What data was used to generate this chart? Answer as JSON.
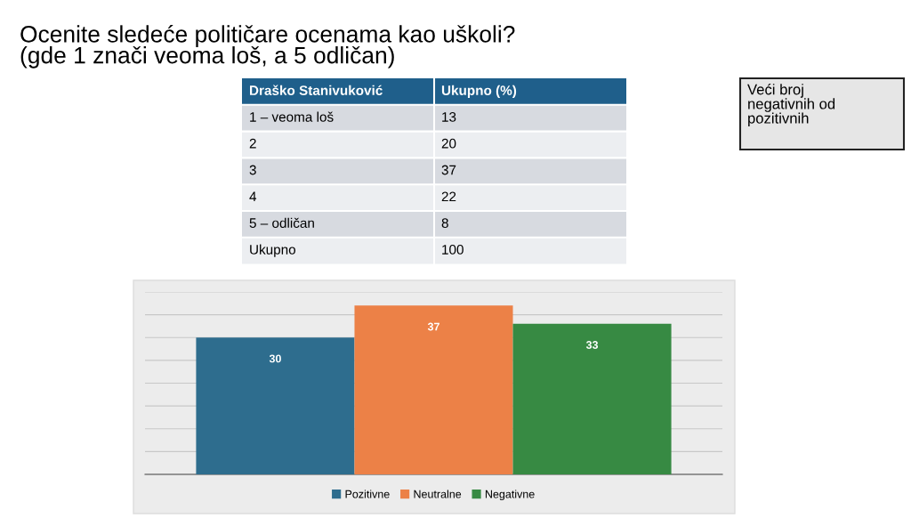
{
  "chart_data": [
    {
      "type": "other",
      "title": "Ocenite sledeće političare ocenama kao uškoli?\n(gde 1 znači veoma loš, a 5 odličan)",
      "annotations": [
        "Draško Stanivuković",
        "Ukupno (%)",
        "Veći broj\nnegativnih od\npozitivnih"
      ],
      "categories": [
        "1 – veoma loš",
        "2",
        "3",
        "4",
        "5 – odličan",
        "Ukupno"
      ],
      "values": [
        13,
        20,
        37,
        22,
        8,
        100
      ],
      "data_labels": true
    },
    {
      "type": "bar",
      "categories": [
        null
      ],
      "series": [
        {
          "name": "Pozitivne",
          "color": "#2e6d8e",
          "values": [
            30
          ]
        },
        {
          "name": "Neutralne",
          "color": "#ec8147",
          "values": [
            37
          ]
        },
        {
          "name": "Negativne",
          "color": "#378a43",
          "values": [
            33
          ]
        }
      ],
      "ylim": [
        0,
        40
      ],
      "yticks": [
        {
          "value": 0,
          "label": null
        },
        {
          "value": 5,
          "label": null
        },
        {
          "value": 10,
          "label": null
        },
        {
          "value": 15,
          "label": null
        },
        {
          "value": 20,
          "label": null
        },
        {
          "value": 25,
          "label": null
        },
        {
          "value": 30,
          "label": null
        },
        {
          "value": 35,
          "label": null
        },
        {
          "value": 40,
          "label": null
        }
      ],
      "grid": "y",
      "legend": "bottom",
      "data_labels": true
    }
  ]
}
